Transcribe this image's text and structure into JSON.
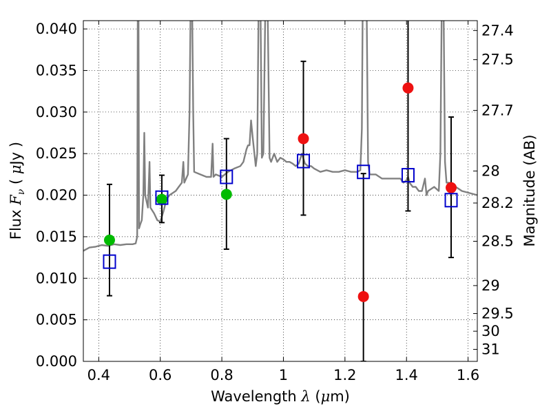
{
  "chart_data": {
    "type": "scatter",
    "xlabel": {
      "prefix": "Wavelength  ",
      "symbol": "λ",
      "suffix": " (",
      "unit_symbol": "μ",
      "unit_rest": "m)"
    },
    "ylabel": {
      "prefix": "Flux  ",
      "symbol": "F",
      "subscript": "ν",
      "suffix": "  ( ",
      "unit_symbol": "μ",
      "unit_rest": "Jy )"
    },
    "ylabel_right": "Magnitude (AB)",
    "xlim": [
      0.35,
      1.63
    ],
    "ylim": [
      0.0,
      0.041
    ],
    "grid": true,
    "x_ticks": [
      {
        "value": 0.4,
        "label": "0.4"
      },
      {
        "value": 0.6,
        "label": "0.6"
      },
      {
        "value": 0.8,
        "label": "0.8"
      },
      {
        "value": 1.0,
        "label": "1"
      },
      {
        "value": 1.2,
        "label": "1.2"
      },
      {
        "value": 1.4,
        "label": "1.4"
      },
      {
        "value": 1.6,
        "label": "1.6"
      }
    ],
    "y_ticks": [
      {
        "value": 0.0,
        "label": "0.000"
      },
      {
        "value": 0.005,
        "label": "0.005"
      },
      {
        "value": 0.01,
        "label": "0.010"
      },
      {
        "value": 0.015,
        "label": "0.015"
      },
      {
        "value": 0.02,
        "label": "0.020"
      },
      {
        "value": 0.025,
        "label": "0.025"
      },
      {
        "value": 0.03,
        "label": "0.030"
      },
      {
        "value": 0.035,
        "label": "0.035"
      },
      {
        "value": 0.04,
        "label": "0.040"
      }
    ],
    "right_ticks": [
      {
        "mag": 27.4,
        "label": "27.4"
      },
      {
        "mag": 27.5,
        "label": "27.5"
      },
      {
        "mag": 27.7,
        "label": "27.7"
      },
      {
        "mag": 28.0,
        "label": "28"
      },
      {
        "mag": 28.2,
        "label": "28.2"
      },
      {
        "mag": 28.5,
        "label": "28.5"
      },
      {
        "mag": 29.0,
        "label": "29"
      },
      {
        "mag": 29.5,
        "label": "29.5"
      },
      {
        "mag": 30.0,
        "label": "30"
      },
      {
        "mag": 31.0,
        "label": "31"
      }
    ],
    "colors": {
      "spectrum": "#808080",
      "green": "#00bb00",
      "red": "#ee1111",
      "model": "#0000cc",
      "errorbar": "#000000"
    },
    "spectrum": [
      [
        0.35,
        0.0133
      ],
      [
        0.37,
        0.0137
      ],
      [
        0.39,
        0.0138
      ],
      [
        0.41,
        0.014
      ],
      [
        0.43,
        0.0139
      ],
      [
        0.45,
        0.0141
      ],
      [
        0.47,
        0.014
      ],
      [
        0.49,
        0.0141
      ],
      [
        0.51,
        0.0141
      ],
      [
        0.52,
        0.0142
      ],
      [
        0.525,
        0.015
      ],
      [
        0.527,
        0.045
      ],
      [
        0.529,
        0.045
      ],
      [
        0.531,
        0.016
      ],
      [
        0.535,
        0.0165
      ],
      [
        0.54,
        0.017
      ],
      [
        0.545,
        0.02
      ],
      [
        0.548,
        0.0275
      ],
      [
        0.551,
        0.02
      ],
      [
        0.56,
        0.0185
      ],
      [
        0.565,
        0.024
      ],
      [
        0.568,
        0.0185
      ],
      [
        0.58,
        0.0178
      ],
      [
        0.59,
        0.017
      ],
      [
        0.6,
        0.0168
      ],
      [
        0.61,
        0.018
      ],
      [
        0.62,
        0.0195
      ],
      [
        0.63,
        0.02
      ],
      [
        0.65,
        0.0205
      ],
      [
        0.66,
        0.021
      ],
      [
        0.67,
        0.0215
      ],
      [
        0.675,
        0.024
      ],
      [
        0.678,
        0.0215
      ],
      [
        0.69,
        0.0225
      ],
      [
        0.695,
        0.03
      ],
      [
        0.699,
        0.045
      ],
      [
        0.703,
        0.045
      ],
      [
        0.707,
        0.03
      ],
      [
        0.71,
        0.0228
      ],
      [
        0.73,
        0.0225
      ],
      [
        0.75,
        0.0222
      ],
      [
        0.765,
        0.0222
      ],
      [
        0.77,
        0.0262
      ],
      [
        0.773,
        0.0222
      ],
      [
        0.78,
        0.0225
      ],
      [
        0.8,
        0.0222
      ],
      [
        0.82,
        0.0228
      ],
      [
        0.84,
        0.0232
      ],
      [
        0.86,
        0.0235
      ],
      [
        0.87,
        0.024
      ],
      [
        0.88,
        0.0255
      ],
      [
        0.885,
        0.026
      ],
      [
        0.89,
        0.026
      ],
      [
        0.895,
        0.029
      ],
      [
        0.9,
        0.027
      ],
      [
        0.91,
        0.0235
      ],
      [
        0.915,
        0.025
      ],
      [
        0.92,
        0.045
      ],
      [
        0.925,
        0.045
      ],
      [
        0.93,
        0.0245
      ],
      [
        0.935,
        0.025
      ],
      [
        0.942,
        0.045
      ],
      [
        0.948,
        0.045
      ],
      [
        0.955,
        0.0245
      ],
      [
        0.96,
        0.024
      ],
      [
        0.97,
        0.025
      ],
      [
        0.98,
        0.024
      ],
      [
        0.99,
        0.0245
      ],
      [
        1.0,
        0.0243
      ],
      [
        1.01,
        0.024
      ],
      [
        1.02,
        0.024
      ],
      [
        1.03,
        0.0238
      ],
      [
        1.04,
        0.0235
      ],
      [
        1.05,
        0.0238
      ],
      [
        1.06,
        0.025
      ],
      [
        1.07,
        0.0238
      ],
      [
        1.08,
        0.0235
      ],
      [
        1.09,
        0.0235
      ],
      [
        1.1,
        0.0232
      ],
      [
        1.12,
        0.0228
      ],
      [
        1.14,
        0.023
      ],
      [
        1.16,
        0.0228
      ],
      [
        1.18,
        0.0228
      ],
      [
        1.2,
        0.023
      ],
      [
        1.22,
        0.0228
      ],
      [
        1.24,
        0.0228
      ],
      [
        1.25,
        0.023
      ],
      [
        1.255,
        0.028
      ],
      [
        1.258,
        0.045
      ],
      [
        1.27,
        0.045
      ],
      [
        1.275,
        0.024
      ],
      [
        1.28,
        0.0225
      ],
      [
        1.3,
        0.0225
      ],
      [
        1.32,
        0.022
      ],
      [
        1.34,
        0.022
      ],
      [
        1.36,
        0.022
      ],
      [
        1.38,
        0.022
      ],
      [
        1.39,
        0.0215
      ],
      [
        1.4,
        0.0218
      ],
      [
        1.405,
        0.0222
      ],
      [
        1.41,
        0.0215
      ],
      [
        1.42,
        0.021
      ],
      [
        1.43,
        0.021
      ],
      [
        1.44,
        0.0205
      ],
      [
        1.45,
        0.0205
      ],
      [
        1.46,
        0.022
      ],
      [
        1.465,
        0.02
      ],
      [
        1.47,
        0.0205
      ],
      [
        1.49,
        0.021
      ],
      [
        1.505,
        0.0205
      ],
      [
        1.51,
        0.025
      ],
      [
        1.515,
        0.045
      ],
      [
        1.52,
        0.045
      ],
      [
        1.525,
        0.024
      ],
      [
        1.53,
        0.0215
      ],
      [
        1.54,
        0.0215
      ],
      [
        1.56,
        0.021
      ],
      [
        1.58,
        0.0205
      ],
      [
        1.6,
        0.0203
      ],
      [
        1.63,
        0.02
      ]
    ],
    "observed": [
      {
        "x": 0.435,
        "y": 0.0146,
        "color": "green",
        "err_low": 0.0079,
        "err_high": 0.0213
      },
      {
        "x": 0.605,
        "y": 0.0195,
        "color": "green",
        "err_low": 0.0167,
        "err_high": 0.0224
      },
      {
        "x": 0.815,
        "y": 0.0201,
        "color": "green",
        "err_low": 0.0135,
        "err_high": 0.0268
      },
      {
        "x": 1.065,
        "y": 0.0268,
        "color": "red",
        "err_low": 0.0176,
        "err_high": 0.0361
      },
      {
        "x": 1.26,
        "y": 0.0078,
        "color": "red",
        "err_low": 0.0,
        "err_high": 0.0226
      },
      {
        "x": 1.405,
        "y": 0.0329,
        "color": "red",
        "err_low": 0.0181,
        "err_high": 0.0415
      },
      {
        "x": 1.545,
        "y": 0.0209,
        "color": "red",
        "err_low": 0.0125,
        "err_high": 0.0294
      }
    ],
    "model": [
      {
        "x": 0.435,
        "y": 0.012
      },
      {
        "x": 0.605,
        "y": 0.0197
      },
      {
        "x": 0.815,
        "y": 0.0222
      },
      {
        "x": 1.065,
        "y": 0.0241
      },
      {
        "x": 1.26,
        "y": 0.0228
      },
      {
        "x": 1.405,
        "y": 0.0224
      },
      {
        "x": 1.545,
        "y": 0.0194
      }
    ]
  }
}
